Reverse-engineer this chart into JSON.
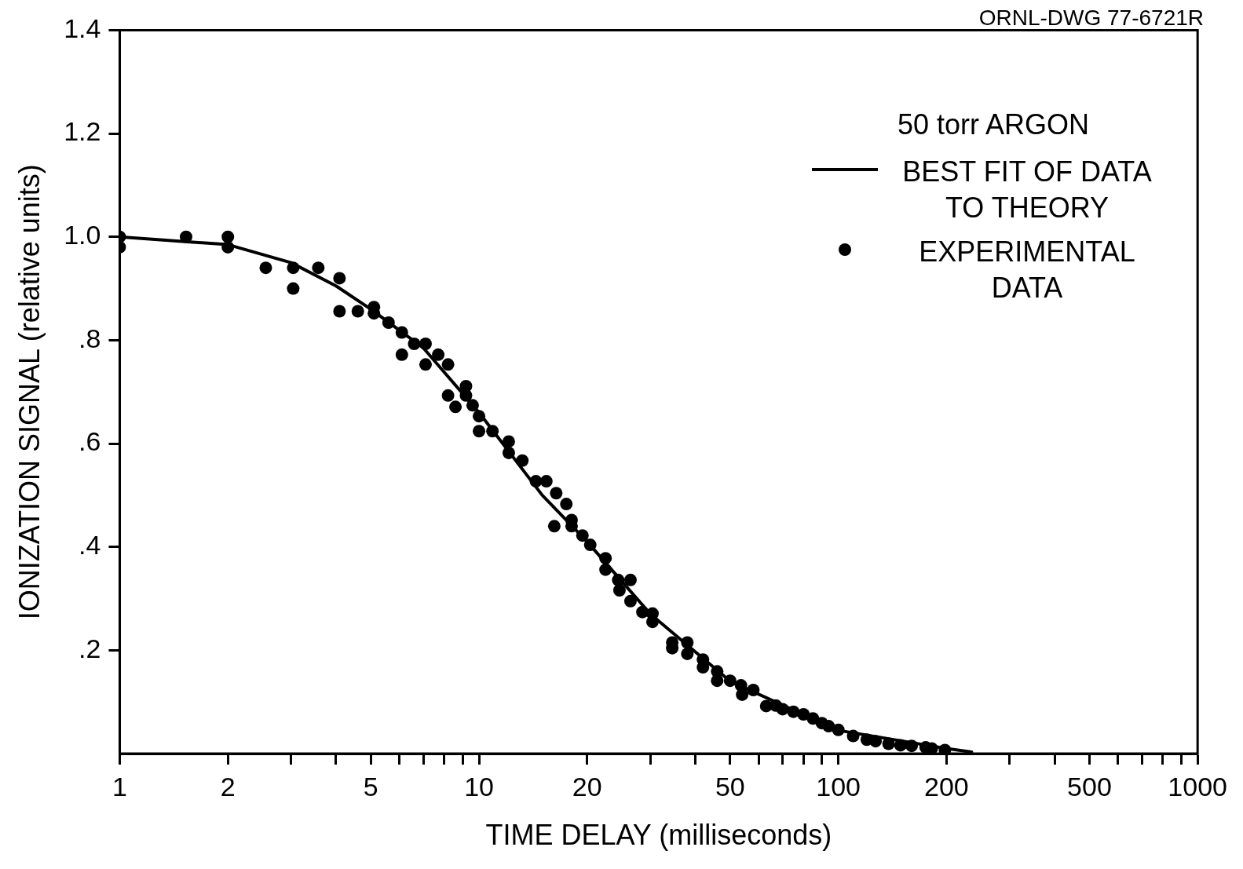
{
  "chart_data": {
    "type": "scatter",
    "xlabel": "TIME DELAY (milliseconds)",
    "ylabel": "IONIZATION SIGNAL (relative units)",
    "legend_title": "50 torr ARGON",
    "annotations": [
      "ORNL-DWG 77-6721R"
    ],
    "log": "x",
    "xlim": [
      1,
      1000
    ],
    "ylim": [
      0,
      1.4
    ],
    "xticks": [
      1,
      2,
      {
        "value": 3,
        "label": null
      },
      {
        "value": 4,
        "label": null
      },
      5,
      {
        "value": 6,
        "label": null
      },
      {
        "value": 7,
        "label": null
      },
      {
        "value": 8,
        "label": null
      },
      {
        "value": 9,
        "label": null
      },
      10,
      20,
      {
        "value": 30,
        "label": null
      },
      {
        "value": 40,
        "label": null
      },
      50,
      {
        "value": 60,
        "label": null
      },
      {
        "value": 70,
        "label": null
      },
      {
        "value": 80,
        "label": null
      },
      {
        "value": 90,
        "label": null
      },
      100,
      200,
      {
        "value": 300,
        "label": null
      },
      {
        "value": 400,
        "label": null
      },
      500,
      {
        "value": 600,
        "label": null
      },
      {
        "value": 700,
        "label": null
      },
      {
        "value": 800,
        "label": null
      },
      {
        "value": 900,
        "label": null
      },
      1000
    ],
    "yticks": [
      {
        "value": 0.2,
        "label": ".2"
      },
      {
        "value": 0.4,
        "label": ".4"
      },
      {
        "value": 0.6,
        "label": ".6"
      },
      {
        "value": 0.8,
        "label": ".8"
      },
      {
        "value": 1.0,
        "label": "1.0"
      },
      {
        "value": 1.2,
        "label": "1.2"
      },
      {
        "value": 1.4,
        "label": "1.4"
      }
    ],
    "grid": false,
    "legend": "top right",
    "series": [
      {
        "name": "BEST FIT OF DATA TO THEORY",
        "type": "line",
        "marker": "none",
        "color": "#000000",
        "x": [
          1,
          2,
          3,
          4,
          5,
          7,
          10,
          15,
          20,
          30,
          50,
          100,
          200,
          235
        ],
        "values": [
          1.0,
          0.985,
          0.95,
          0.905,
          0.86,
          0.785,
          0.66,
          0.5,
          0.41,
          0.27,
          0.14,
          0.045,
          0.01,
          0.003
        ]
      },
      {
        "name": "EXPERIMENTAL DATA",
        "marker": "circle",
        "color": "#000000",
        "x": [
          1,
          1,
          1.53,
          2,
          2,
          2.55,
          3.04,
          3.04,
          3.57,
          4.09,
          4.09,
          4.6,
          5.1,
          5.1,
          5.6,
          6.1,
          6.1,
          6.6,
          7.1,
          7.1,
          7.7,
          8.2,
          8.2,
          8.6,
          9.2,
          9.2,
          9.6,
          10,
          10,
          10.9,
          12.1,
          12.1,
          13.2,
          14.4,
          15.4,
          16.4,
          16.2,
          17.5,
          18.1,
          18.1,
          19.4,
          20.4,
          22.5,
          22.5,
          24.4,
          24.6,
          26.4,
          26.4,
          28.5,
          30.4,
          30.4,
          34.5,
          38,
          34.5,
          38,
          42,
          42,
          46,
          46,
          50,
          53.6,
          54,
          58,
          63,
          67,
          70,
          75,
          80,
          85,
          90,
          94,
          100,
          110,
          120,
          127,
          138,
          149,
          160,
          175,
          182,
          198
        ],
        "values": [
          1.0,
          0.98,
          1.0,
          1.0,
          0.98,
          0.94,
          0.94,
          0.9,
          0.94,
          0.92,
          0.856,
          0.856,
          0.864,
          0.852,
          0.834,
          0.815,
          0.772,
          0.793,
          0.793,
          0.753,
          0.772,
          0.753,
          0.693,
          0.671,
          0.711,
          0.693,
          0.674,
          0.653,
          0.624,
          0.624,
          0.604,
          0.582,
          0.567,
          0.527,
          0.527,
          0.504,
          0.44,
          0.483,
          0.452,
          0.44,
          0.422,
          0.404,
          0.378,
          0.356,
          0.336,
          0.316,
          0.336,
          0.295,
          0.274,
          0.271,
          0.255,
          0.215,
          0.215,
          0.204,
          0.193,
          0.182,
          0.167,
          0.159,
          0.141,
          0.141,
          0.132,
          0.114,
          0.123,
          0.092,
          0.093,
          0.086,
          0.081,
          0.076,
          0.068,
          0.059,
          0.053,
          0.046,
          0.034,
          0.027,
          0.024,
          0.019,
          0.016,
          0.015,
          0.012,
          0.01,
          0.007
        ]
      }
    ]
  }
}
